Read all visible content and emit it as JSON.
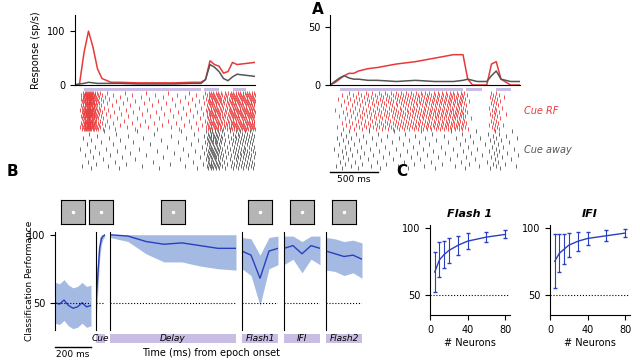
{
  "panel_labels": [
    "A",
    "B",
    "C"
  ],
  "chart_data": [
    {
      "type": "line",
      "y_label": "Response (sp/s)",
      "x": [
        0,
        50,
        100,
        150,
        200,
        250,
        300,
        400,
        500,
        700,
        900,
        1100,
        1300,
        1400,
        1450,
        1500,
        1550,
        1600,
        1650,
        1700,
        1750,
        1800,
        1900,
        2000
      ],
      "series": [
        {
          "color": "#e8393a",
          "values": [
            0,
            2,
            60,
            100,
            70,
            30,
            12,
            5,
            5,
            4,
            4,
            4,
            5,
            5,
            10,
            45,
            38,
            35,
            22,
            25,
            42,
            38,
            40,
            42
          ]
        },
        {
          "color": "#555555",
          "values": [
            0,
            2,
            3,
            5,
            4,
            3,
            3,
            3,
            3,
            2,
            2,
            2,
            3,
            3,
            10,
            38,
            33,
            25,
            12,
            8,
            15,
            20,
            18,
            16
          ]
        }
      ],
      "xlim": [
        0,
        2000
      ],
      "ylim": [
        0,
        130
      ],
      "yticks": [
        0,
        100
      ],
      "tick_labels": "y",
      "epochs": [
        [
          100,
          1400
        ],
        [
          1430,
          1600
        ],
        [
          1750,
          1900
        ]
      ]
    },
    {
      "type": "line",
      "x": [
        0,
        50,
        100,
        150,
        200,
        250,
        300,
        400,
        500,
        700,
        900,
        1100,
        1300,
        1400,
        1450,
        1500,
        1550,
        1600,
        1650,
        1700,
        1750,
        1800,
        1900,
        2000
      ],
      "series": [
        {
          "name": "Cue RF",
          "color": "#e8393a",
          "values": [
            0,
            2,
            5,
            8,
            10,
            10,
            12,
            14,
            15,
            18,
            20,
            23,
            26,
            26,
            5,
            0,
            0,
            0,
            0,
            18,
            20,
            5,
            0,
            0
          ]
        },
        {
          "name": "Cue away",
          "color": "#555555",
          "values": [
            0,
            3,
            6,
            8,
            6,
            5,
            5,
            4,
            4,
            3,
            4,
            3,
            3,
            4,
            5,
            4,
            3,
            3,
            3,
            8,
            12,
            5,
            3,
            3
          ]
        }
      ],
      "xlim": [
        0,
        2000
      ],
      "ylim": [
        0,
        60
      ],
      "yticks": [
        0,
        50
      ],
      "tick_labels": "y",
      "epochs": [
        [
          100,
          1400
        ],
        [
          1430,
          1600
        ],
        [
          1750,
          1900
        ]
      ],
      "scale_bar": {
        "value": 500,
        "label": "500 ms"
      }
    },
    {
      "type": "line",
      "y_label": "Classification Performance",
      "x_label": "Time (ms) from epoch onset",
      "ylim": [
        30,
        102
      ],
      "yticks": [
        50,
        100
      ],
      "reference_line": 50,
      "color": "#2a3fbf",
      "tick_labels": "y",
      "scale_bar": {
        "value": 200,
        "label": "200 ms"
      },
      "segments": [
        {
          "label": null,
          "xlim": [
            0,
            200
          ],
          "x": [
            0,
            25,
            50,
            75,
            100,
            125,
            150,
            175,
            200
          ],
          "values": [
            50,
            49,
            52,
            48,
            46,
            47,
            50,
            47,
            48
          ],
          "lower": [
            35,
            34,
            37,
            33,
            31,
            32,
            35,
            32,
            33
          ],
          "upper": [
            65,
            64,
            67,
            63,
            61,
            62,
            65,
            62,
            63
          ]
        },
        {
          "label": "Cue",
          "xlim": [
            0,
            50
          ],
          "x": [
            0,
            10,
            20,
            30,
            40,
            50
          ],
          "values": [
            50,
            70,
            90,
            97,
            99,
            100
          ],
          "lower": [
            35,
            58,
            82,
            93,
            97,
            99
          ],
          "upper": [
            65,
            82,
            98,
            100,
            100,
            100
          ]
        },
        {
          "label": "Delay",
          "xlim": [
            0,
            700
          ],
          "x": [
            0,
            100,
            200,
            300,
            400,
            500,
            600,
            700
          ],
          "values": [
            100,
            99,
            95,
            93,
            94,
            92,
            90,
            90
          ],
          "lower": [
            98,
            95,
            86,
            80,
            80,
            77,
            75,
            74
          ],
          "upper": [
            100,
            100,
            100,
            100,
            100,
            100,
            100,
            100
          ]
        },
        {
          "label": "Flash1",
          "xlim": [
            0,
            200
          ],
          "x": [
            0,
            50,
            100,
            150,
            200
          ],
          "values": [
            88,
            85,
            68,
            88,
            90
          ],
          "lower": [
            75,
            70,
            48,
            75,
            78
          ],
          "upper": [
            98,
            97,
            85,
            98,
            99
          ]
        },
        {
          "label": "IFI",
          "xlim": [
            0,
            200
          ],
          "x": [
            0,
            50,
            100,
            150,
            200
          ],
          "values": [
            90,
            92,
            86,
            92,
            90
          ],
          "lower": [
            78,
            82,
            72,
            82,
            78
          ],
          "upper": [
            99,
            99,
            95,
            99,
            99
          ]
        },
        {
          "label": "Flash2",
          "xlim": [
            0,
            200
          ],
          "x": [
            0,
            50,
            100,
            150,
            200
          ],
          "values": [
            88,
            86,
            84,
            85,
            82
          ],
          "lower": [
            74,
            73,
            70,
            72,
            68
          ],
          "upper": [
            98,
            97,
            95,
            96,
            94
          ]
        }
      ]
    },
    {
      "type": "line",
      "title": "Flash 1",
      "x_label": "# Neurons",
      "color": "#2a3fbf",
      "x": [
        5,
        10,
        15,
        20,
        30,
        40,
        60,
        80
      ],
      "values": [
        67,
        76,
        80,
        83,
        87,
        90,
        93,
        95
      ],
      "errors": [
        15,
        13,
        10,
        9,
        7,
        6,
        4,
        3
      ],
      "xlim": [
        0,
        85
      ],
      "xticks": [
        0,
        40,
        80
      ],
      "ylim": [
        35,
        102
      ],
      "yticks": [
        50,
        100
      ],
      "reference_line": 50
    },
    {
      "type": "line",
      "title": "IFI",
      "x_label": "# Neurons",
      "color": "#2a3fbf",
      "x": [
        5,
        10,
        15,
        20,
        30,
        40,
        60,
        80
      ],
      "values": [
        75,
        81,
        84,
        87,
        90,
        92,
        94,
        96
      ],
      "errors": [
        20,
        14,
        11,
        9,
        7,
        5,
        4,
        3
      ],
      "xlim": [
        0,
        85
      ],
      "xticks": [
        0,
        40,
        80
      ],
      "ylim": [
        35,
        102
      ],
      "yticks": [
        50,
        100
      ],
      "reference_line": 50
    }
  ]
}
